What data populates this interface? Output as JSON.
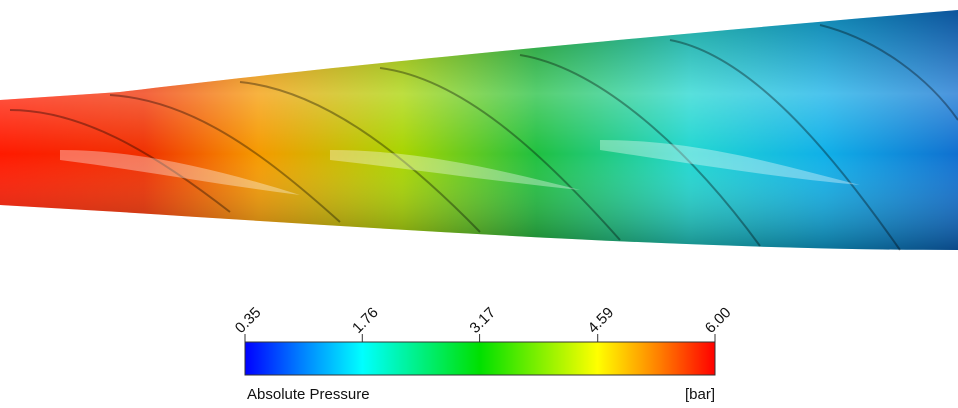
{
  "colorbar": {
    "title": "Absolute Pressure",
    "unit": "[bar]",
    "range": [
      0.35,
      6
    ],
    "ticks": [
      0.35,
      1.76,
      3.17,
      4.59,
      {
        "value": 6,
        "label": "6.00"
      }
    ]
  }
}
